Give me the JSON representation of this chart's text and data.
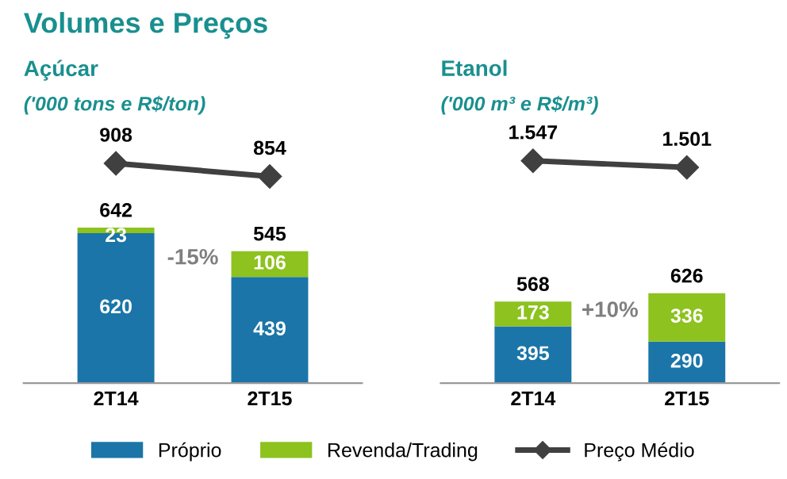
{
  "chart_data": [
    {
      "type": "bar",
      "title": "Açúcar",
      "subtitle": "('000 tons e R$/ton)",
      "stacked": true,
      "data_labels": true,
      "categories": [
        "2T14",
        "2T15"
      ],
      "totals": [
        "642",
        "545"
      ],
      "annotations": [
        "Volumes e Preços",
        "-15%"
      ],
      "legend": "bottom",
      "series": [
        {
          "name": "Próprio",
          "color": "#1b75a8",
          "values": [
            620,
            439
          ]
        },
        {
          "name": "Revenda/Trading",
          "color": "#8dc21f",
          "values": [
            23,
            106
          ]
        },
        {
          "name": "Preço Médio",
          "type": "line",
          "color": "#404040",
          "marker": "diamond",
          "values": [
            908,
            854
          ],
          "value_labels": [
            "908",
            "854"
          ]
        }
      ]
    },
    {
      "type": "bar",
      "title": "Etanol",
      "subtitle": "('000 m³ e R$/m³)",
      "stacked": true,
      "data_labels": true,
      "categories": [
        "2T14",
        "2T15"
      ],
      "totals": [
        "568",
        "626"
      ],
      "annotations": [
        "+10%"
      ],
      "legend": "bottom",
      "series": [
        {
          "name": "Próprio",
          "color": "#1b75a8",
          "values": [
            395,
            290
          ]
        },
        {
          "name": "Revenda/Trading",
          "color": "#8dc21f",
          "values": [
            173,
            336
          ]
        },
        {
          "name": "Preço Médio",
          "type": "line",
          "color": "#404040",
          "marker": "diamond",
          "values": [
            1547,
            1501
          ],
          "value_labels": [
            "1.547",
            "1.501"
          ]
        }
      ]
    }
  ]
}
